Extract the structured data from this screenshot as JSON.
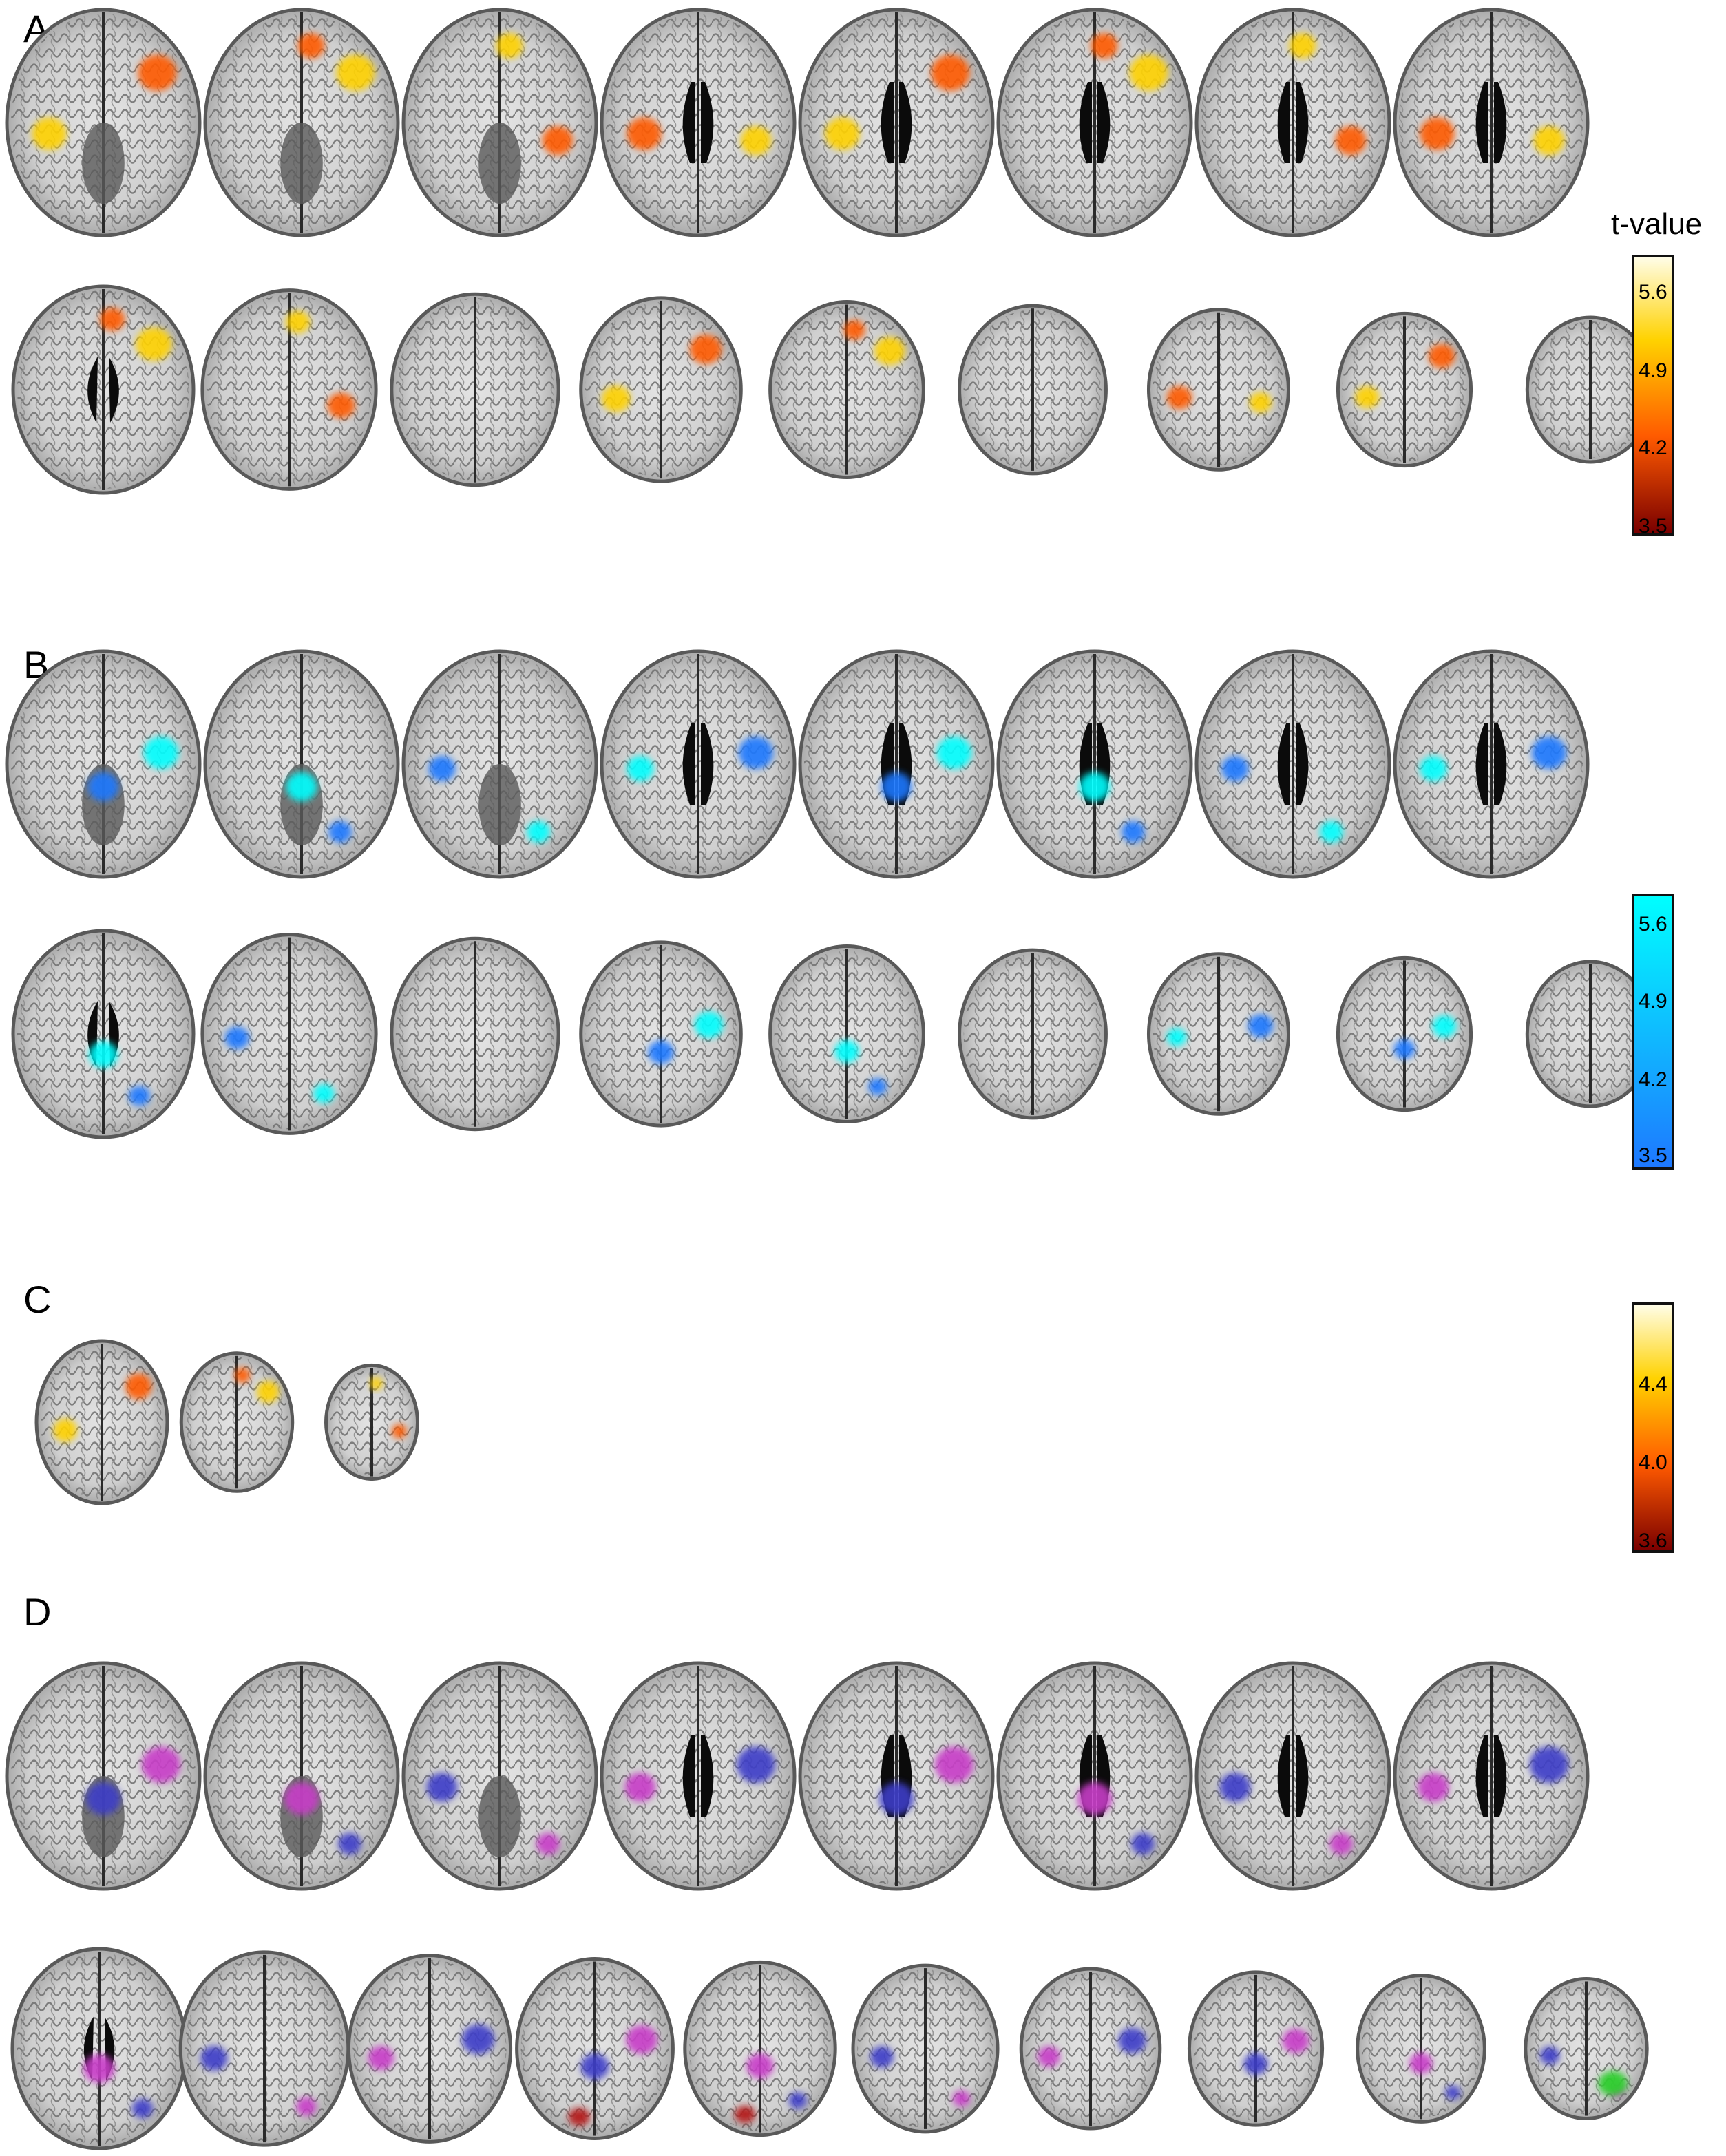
{
  "panels": {
    "a": {
      "letter": "A",
      "colorbar_title": "t-value",
      "ticks": [
        "5.6",
        "4.9",
        "4.2",
        "3.5"
      ],
      "overlay": "hot",
      "row_counts": [
        8,
        9
      ]
    },
    "b": {
      "letter": "B",
      "colorbar_title": "",
      "ticks": [
        "5.6",
        "4.9",
        "4.2",
        "3.5"
      ],
      "overlay": "cool",
      "row_counts": [
        8,
        9
      ]
    },
    "c": {
      "letter": "C",
      "colorbar_title": "",
      "ticks": [
        "4.4",
        "4.0",
        "3.6"
      ],
      "overlay": "hot",
      "row_counts": [
        3
      ]
    },
    "d": {
      "letter": "D",
      "colorbar_title": "",
      "ticks": [],
      "overlay": "mixed",
      "row_counts": [
        8,
        10
      ]
    }
  },
  "colors": {
    "hot_top": "#fffde6",
    "hot_mid": "#ffd200",
    "hot_low": "#ff5a00",
    "hot_bottom": "#7a0000",
    "cool_top": "#00ffff",
    "cool_bottom": "#1e78ff",
    "blob_blue": "#3c3cc8",
    "blob_magenta": "#c83cc8",
    "blob_red": "#b41e1e",
    "blob_green": "#2fcf2f",
    "brain_bg": "#d6d6d6",
    "brain_edge": "#595959",
    "ventricle": "#0b0b0b"
  }
}
